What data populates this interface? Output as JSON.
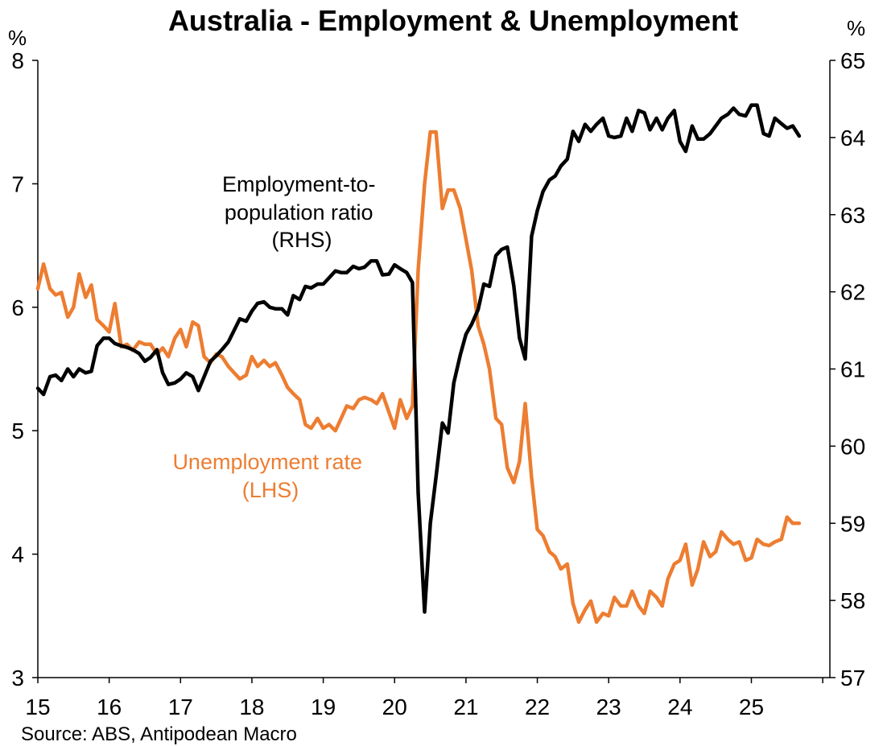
{
  "chart_data": {
    "type": "line",
    "title": "Australia - Employment & Unemployment",
    "source": "Source: ABS, Antipodean Macro",
    "left_axis": {
      "unit": "%",
      "ylim": [
        3,
        8
      ],
      "ticks": [
        "3",
        "4",
        "5",
        "6",
        "7",
        "8"
      ]
    },
    "right_axis": {
      "unit": "%",
      "ylim": [
        57,
        65
      ],
      "ticks": [
        "57",
        "58",
        "59",
        "60",
        "61",
        "62",
        "63",
        "64",
        "65"
      ]
    },
    "x_axis": {
      "xlim": [
        2015,
        2026.1
      ],
      "ticks": [
        "15",
        "16",
        "17",
        "18",
        "19",
        "20",
        "21",
        "22",
        "23",
        "24",
        "25"
      ]
    },
    "grid": false,
    "annotations": {
      "employment": [
        "Employment-to-",
        "population ratio",
        "(RHS)"
      ],
      "unemployment": [
        "Unemployment rate",
        "(LHS)"
      ]
    },
    "series": [
      {
        "name": "Employment-to-population ratio (RHS)",
        "axis": "right",
        "color": "#000000",
        "points": [
          [
            2015.0,
            60.75
          ],
          [
            2015.08,
            60.67
          ],
          [
            2015.17,
            60.9
          ],
          [
            2015.25,
            60.92
          ],
          [
            2015.33,
            60.85
          ],
          [
            2015.42,
            61.0
          ],
          [
            2015.5,
            60.9
          ],
          [
            2015.58,
            61.0
          ],
          [
            2015.67,
            60.95
          ],
          [
            2015.75,
            60.97
          ],
          [
            2015.83,
            61.3
          ],
          [
            2015.92,
            61.4
          ],
          [
            2016.0,
            61.4
          ],
          [
            2016.08,
            61.33
          ],
          [
            2016.17,
            61.3
          ],
          [
            2016.25,
            61.28
          ],
          [
            2016.33,
            61.25
          ],
          [
            2016.42,
            61.2
          ],
          [
            2016.5,
            61.1
          ],
          [
            2016.58,
            61.15
          ],
          [
            2016.67,
            61.25
          ],
          [
            2016.75,
            60.95
          ],
          [
            2016.83,
            60.8
          ],
          [
            2016.92,
            60.82
          ],
          [
            2017.0,
            60.87
          ],
          [
            2017.08,
            60.95
          ],
          [
            2017.17,
            60.9
          ],
          [
            2017.25,
            60.72
          ],
          [
            2017.33,
            60.9
          ],
          [
            2017.42,
            61.1
          ],
          [
            2017.5,
            61.17
          ],
          [
            2017.58,
            61.25
          ],
          [
            2017.67,
            61.35
          ],
          [
            2017.75,
            61.5
          ],
          [
            2017.83,
            61.65
          ],
          [
            2017.92,
            61.62
          ],
          [
            2018.0,
            61.75
          ],
          [
            2018.08,
            61.85
          ],
          [
            2018.17,
            61.87
          ],
          [
            2018.25,
            61.8
          ],
          [
            2018.33,
            61.78
          ],
          [
            2018.42,
            61.78
          ],
          [
            2018.5,
            61.7
          ],
          [
            2018.58,
            61.95
          ],
          [
            2018.67,
            61.9
          ],
          [
            2018.75,
            62.07
          ],
          [
            2018.83,
            62.05
          ],
          [
            2018.92,
            62.1
          ],
          [
            2019.0,
            62.1
          ],
          [
            2019.08,
            62.18
          ],
          [
            2019.17,
            62.27
          ],
          [
            2019.25,
            62.25
          ],
          [
            2019.33,
            62.25
          ],
          [
            2019.42,
            62.33
          ],
          [
            2019.5,
            62.3
          ],
          [
            2019.58,
            62.32
          ],
          [
            2019.67,
            62.4
          ],
          [
            2019.75,
            62.4
          ],
          [
            2019.83,
            62.22
          ],
          [
            2019.92,
            62.23
          ],
          [
            2020.0,
            62.35
          ],
          [
            2020.08,
            62.3
          ],
          [
            2020.17,
            62.25
          ],
          [
            2020.25,
            62.12
          ],
          [
            2020.33,
            59.4
          ],
          [
            2020.42,
            57.85
          ],
          [
            2020.5,
            59.0
          ],
          [
            2020.58,
            59.6
          ],
          [
            2020.67,
            60.3
          ],
          [
            2020.75,
            60.17
          ],
          [
            2020.83,
            60.82
          ],
          [
            2020.92,
            61.18
          ],
          [
            2021.0,
            61.45
          ],
          [
            2021.08,
            61.58
          ],
          [
            2021.17,
            61.77
          ],
          [
            2021.25,
            62.1
          ],
          [
            2021.33,
            62.07
          ],
          [
            2021.42,
            62.47
          ],
          [
            2021.5,
            62.55
          ],
          [
            2021.58,
            62.58
          ],
          [
            2021.67,
            62.08
          ],
          [
            2021.75,
            61.4
          ],
          [
            2021.83,
            61.13
          ],
          [
            2021.92,
            62.72
          ],
          [
            2022.0,
            63.05
          ],
          [
            2022.08,
            63.3
          ],
          [
            2022.17,
            63.45
          ],
          [
            2022.25,
            63.5
          ],
          [
            2022.33,
            63.63
          ],
          [
            2022.42,
            63.72
          ],
          [
            2022.5,
            64.08
          ],
          [
            2022.58,
            63.95
          ],
          [
            2022.67,
            64.17
          ],
          [
            2022.75,
            64.08
          ],
          [
            2022.83,
            64.17
          ],
          [
            2022.92,
            64.25
          ],
          [
            2023.0,
            64.02
          ],
          [
            2023.08,
            64.0
          ],
          [
            2023.17,
            64.02
          ],
          [
            2023.25,
            64.25
          ],
          [
            2023.33,
            64.08
          ],
          [
            2023.42,
            64.35
          ],
          [
            2023.5,
            64.32
          ],
          [
            2023.58,
            64.1
          ],
          [
            2023.67,
            64.25
          ],
          [
            2023.75,
            64.1
          ],
          [
            2023.83,
            64.25
          ],
          [
            2023.92,
            64.35
          ],
          [
            2024.0,
            63.95
          ],
          [
            2024.08,
            63.82
          ],
          [
            2024.17,
            64.15
          ],
          [
            2024.25,
            63.98
          ],
          [
            2024.33,
            63.98
          ],
          [
            2024.42,
            64.05
          ],
          [
            2024.5,
            64.15
          ],
          [
            2024.58,
            64.25
          ],
          [
            2024.67,
            64.3
          ],
          [
            2024.75,
            64.38
          ],
          [
            2024.83,
            64.3
          ],
          [
            2024.92,
            64.28
          ],
          [
            2025.0,
            64.42
          ],
          [
            2025.08,
            64.42
          ],
          [
            2025.17,
            64.05
          ],
          [
            2025.25,
            64.02
          ],
          [
            2025.33,
            64.25
          ],
          [
            2025.42,
            64.18
          ],
          [
            2025.5,
            64.12
          ],
          [
            2025.58,
            64.15
          ],
          [
            2025.67,
            64.02
          ]
        ]
      },
      {
        "name": "Unemployment rate (LHS)",
        "axis": "left",
        "color": "#ED7D31",
        "points": [
          [
            2015.0,
            6.15
          ],
          [
            2015.08,
            6.35
          ],
          [
            2015.17,
            6.15
          ],
          [
            2015.25,
            6.1
          ],
          [
            2015.33,
            6.12
          ],
          [
            2015.42,
            5.92
          ],
          [
            2015.5,
            6.0
          ],
          [
            2015.58,
            6.27
          ],
          [
            2015.67,
            6.08
          ],
          [
            2015.75,
            6.18
          ],
          [
            2015.83,
            5.9
          ],
          [
            2015.92,
            5.85
          ],
          [
            2016.0,
            5.8
          ],
          [
            2016.08,
            6.03
          ],
          [
            2016.17,
            5.68
          ],
          [
            2016.25,
            5.7
          ],
          [
            2016.33,
            5.65
          ],
          [
            2016.42,
            5.72
          ],
          [
            2016.5,
            5.7
          ],
          [
            2016.58,
            5.7
          ],
          [
            2016.67,
            5.62
          ],
          [
            2016.75,
            5.67
          ],
          [
            2016.83,
            5.6
          ],
          [
            2016.92,
            5.75
          ],
          [
            2017.0,
            5.82
          ],
          [
            2017.08,
            5.68
          ],
          [
            2017.17,
            5.88
          ],
          [
            2017.25,
            5.85
          ],
          [
            2017.33,
            5.6
          ],
          [
            2017.42,
            5.55
          ],
          [
            2017.5,
            5.62
          ],
          [
            2017.58,
            5.6
          ],
          [
            2017.67,
            5.52
          ],
          [
            2017.75,
            5.47
          ],
          [
            2017.83,
            5.42
          ],
          [
            2017.92,
            5.45
          ],
          [
            2018.0,
            5.6
          ],
          [
            2018.08,
            5.52
          ],
          [
            2018.17,
            5.57
          ],
          [
            2018.25,
            5.52
          ],
          [
            2018.33,
            5.55
          ],
          [
            2018.42,
            5.45
          ],
          [
            2018.5,
            5.35
          ],
          [
            2018.58,
            5.3
          ],
          [
            2018.67,
            5.25
          ],
          [
            2018.75,
            5.05
          ],
          [
            2018.83,
            5.02
          ],
          [
            2018.92,
            5.1
          ],
          [
            2019.0,
            5.02
          ],
          [
            2019.08,
            5.05
          ],
          [
            2019.17,
            5.0
          ],
          [
            2019.25,
            5.1
          ],
          [
            2019.33,
            5.2
          ],
          [
            2019.42,
            5.18
          ],
          [
            2019.5,
            5.25
          ],
          [
            2019.58,
            5.27
          ],
          [
            2019.67,
            5.25
          ],
          [
            2019.75,
            5.22
          ],
          [
            2019.83,
            5.3
          ],
          [
            2019.92,
            5.15
          ],
          [
            2020.0,
            5.02
          ],
          [
            2020.08,
            5.25
          ],
          [
            2020.17,
            5.1
          ],
          [
            2020.25,
            5.2
          ],
          [
            2020.33,
            6.3
          ],
          [
            2020.42,
            7.0
          ],
          [
            2020.5,
            7.42
          ],
          [
            2020.58,
            7.42
          ],
          [
            2020.67,
            6.8
          ],
          [
            2020.75,
            6.95
          ],
          [
            2020.83,
            6.95
          ],
          [
            2020.92,
            6.8
          ],
          [
            2021.0,
            6.55
          ],
          [
            2021.08,
            6.3
          ],
          [
            2021.17,
            5.85
          ],
          [
            2021.25,
            5.7
          ],
          [
            2021.33,
            5.5
          ],
          [
            2021.42,
            5.1
          ],
          [
            2021.5,
            5.05
          ],
          [
            2021.58,
            4.7
          ],
          [
            2021.67,
            4.58
          ],
          [
            2021.75,
            4.75
          ],
          [
            2021.83,
            5.22
          ],
          [
            2021.92,
            4.62
          ],
          [
            2022.0,
            4.2
          ],
          [
            2022.08,
            4.15
          ],
          [
            2022.17,
            4.02
          ],
          [
            2022.25,
            3.98
          ],
          [
            2022.33,
            3.88
          ],
          [
            2022.42,
            3.92
          ],
          [
            2022.5,
            3.6
          ],
          [
            2022.58,
            3.45
          ],
          [
            2022.67,
            3.55
          ],
          [
            2022.75,
            3.62
          ],
          [
            2022.83,
            3.45
          ],
          [
            2022.92,
            3.52
          ],
          [
            2023.0,
            3.5
          ],
          [
            2023.08,
            3.65
          ],
          [
            2023.17,
            3.58
          ],
          [
            2023.25,
            3.58
          ],
          [
            2023.33,
            3.7
          ],
          [
            2023.42,
            3.58
          ],
          [
            2023.5,
            3.52
          ],
          [
            2023.58,
            3.7
          ],
          [
            2023.67,
            3.65
          ],
          [
            2023.75,
            3.58
          ],
          [
            2023.83,
            3.8
          ],
          [
            2023.92,
            3.92
          ],
          [
            2024.0,
            3.95
          ],
          [
            2024.08,
            4.08
          ],
          [
            2024.17,
            3.75
          ],
          [
            2024.25,
            3.88
          ],
          [
            2024.33,
            4.1
          ],
          [
            2024.42,
            3.98
          ],
          [
            2024.5,
            4.02
          ],
          [
            2024.58,
            4.18
          ],
          [
            2024.67,
            4.12
          ],
          [
            2024.75,
            4.08
          ],
          [
            2024.83,
            4.1
          ],
          [
            2024.92,
            3.95
          ],
          [
            2025.0,
            3.97
          ],
          [
            2025.08,
            4.12
          ],
          [
            2025.17,
            4.08
          ],
          [
            2025.25,
            4.07
          ],
          [
            2025.33,
            4.1
          ],
          [
            2025.42,
            4.12
          ],
          [
            2025.5,
            4.3
          ],
          [
            2025.58,
            4.25
          ],
          [
            2025.67,
            4.25
          ]
        ]
      }
    ]
  }
}
